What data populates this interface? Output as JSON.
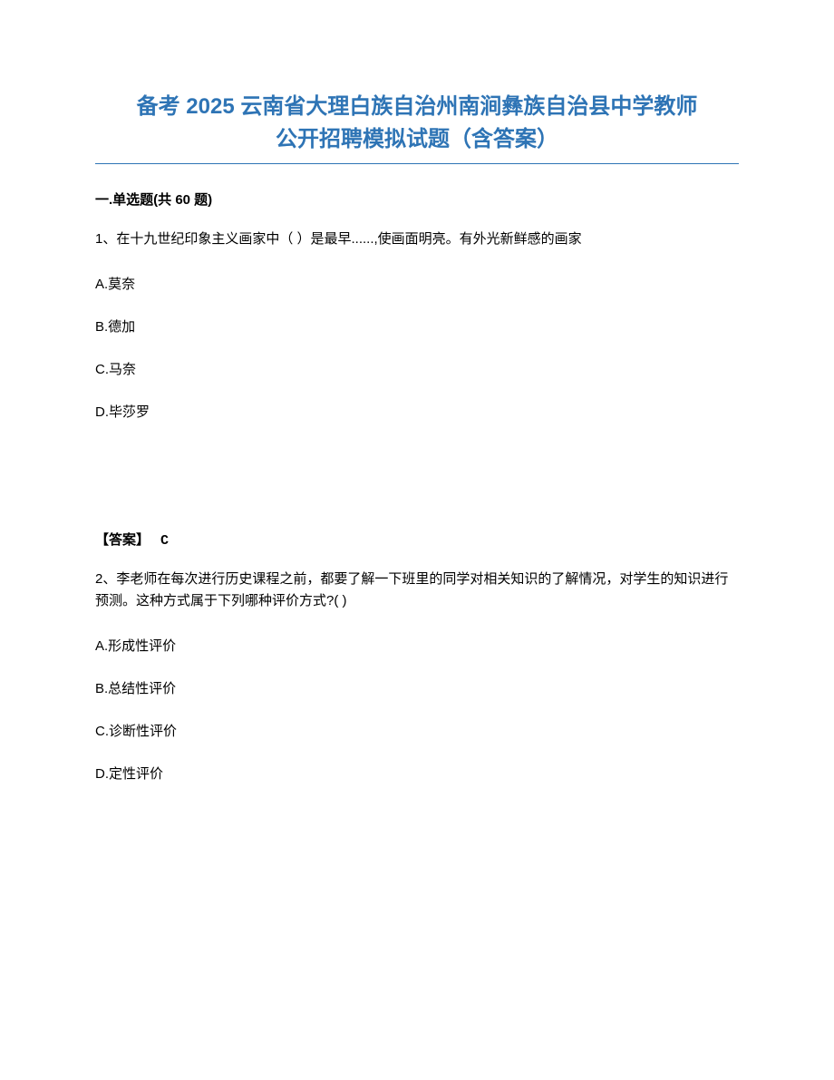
{
  "title": {
    "line1": "备考 2025 云南省大理白族自治州南涧彝族自治县中学教师",
    "line2": "公开招聘模拟试题（含答案）",
    "color": "#2e74b5",
    "fontsize": 24
  },
  "section_header": "一.单选题(共 60 题)",
  "questions": [
    {
      "number": "1",
      "text": "1、在十九世纪印象主义画家中（ ）是最早......,使画面明亮。有外光新鲜感的画家",
      "options": [
        "A.莫奈",
        "B.德加",
        "C.马奈",
        "D.毕莎罗"
      ],
      "answer_label": "【答案】",
      "answer_value": "C"
    },
    {
      "number": "2",
      "text": "2、李老师在每次进行历史课程之前，都要了解一下班里的同学对相关知识的了解情况，对学生的知识进行预测。这种方式属于下列哪种评价方式?(  )",
      "options": [
        "A.形成性评价",
        "B.总结性评价",
        "C.诊断性评价",
        "D.定性评价"
      ]
    }
  ],
  "styling": {
    "body_width": 920,
    "body_height": 1191,
    "background_color": "#ffffff",
    "text_color": "#000000",
    "body_fontsize": 15,
    "option_spacing": 26,
    "answer_top_margin": 120
  }
}
